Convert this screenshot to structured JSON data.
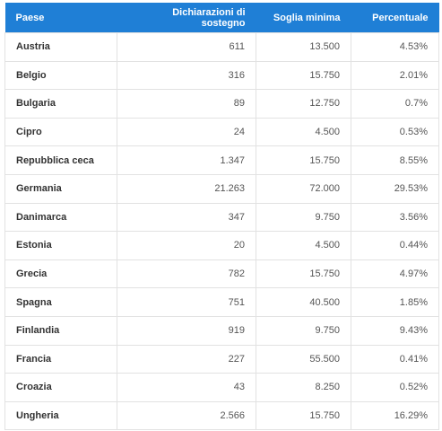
{
  "table": {
    "header": [
      "Paese",
      "Dichiarazioni di sostegno",
      "Soglia minima",
      "Percentuale"
    ],
    "rows": [
      [
        "Austria",
        "611",
        "13.500",
        "4.53%"
      ],
      [
        "Belgio",
        "316",
        "15.750",
        "2.01%"
      ],
      [
        "Bulgaria",
        "89",
        "12.750",
        "0.7%"
      ],
      [
        "Cipro",
        "24",
        "4.500",
        "0.53%"
      ],
      [
        "Repubblica ceca",
        "1.347",
        "15.750",
        "8.55%"
      ],
      [
        "Germania",
        "21.263",
        "72.000",
        "29.53%"
      ],
      [
        "Danimarca",
        "347",
        "9.750",
        "3.56%"
      ],
      [
        "Estonia",
        "20",
        "4.500",
        "0.44%"
      ],
      [
        "Grecia",
        "782",
        "15.750",
        "4.97%"
      ],
      [
        "Spagna",
        "751",
        "40.500",
        "1.85%"
      ],
      [
        "Finlandia",
        "919",
        "9.750",
        "9.43%"
      ],
      [
        "Francia",
        "227",
        "55.500",
        "0.41%"
      ],
      [
        "Croazia",
        "43",
        "8.250",
        "0.52%"
      ],
      [
        "Ungheria",
        "2.566",
        "15.750",
        "16.29%"
      ]
    ]
  }
}
